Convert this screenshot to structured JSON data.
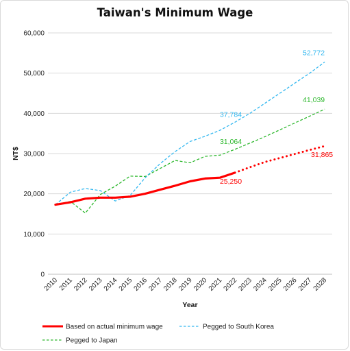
{
  "chart_data": {
    "type": "line",
    "title": "Taiwan's Minimum Wage",
    "xlabel": "Year",
    "ylabel": "NT$",
    "x": [
      "2010",
      "2011",
      "2012",
      "2013",
      "2014",
      "2015",
      "2016",
      "2017",
      "2018",
      "2019",
      "2020",
      "2021",
      "2022",
      "2023",
      "2024",
      "2025",
      "2026",
      "2027",
      "2028"
    ],
    "ylim": [
      0,
      60000
    ],
    "yticks": [
      0,
      10000,
      20000,
      30000,
      40000,
      50000,
      60000
    ],
    "ytick_labels": [
      "0",
      "10,000",
      "20,000",
      "30,000",
      "40,000",
      "50,000",
      "60,000"
    ],
    "grid": "horizontal",
    "legend_position": "bottom",
    "series": [
      {
        "name": "Based on actual minimum wage",
        "color": "#ff0000",
        "style": "solid-thick, dotted projection after 2022",
        "values": [
          17280,
          17880,
          18780,
          19047,
          19047,
          19273,
          20008,
          21009,
          22000,
          23100,
          23800,
          24000,
          25250,
          26600,
          27900,
          28900,
          29900,
          30900,
          31865
        ],
        "labels": [
          {
            "x": "2022",
            "value": 25250,
            "text": "25,250"
          },
          {
            "x": "2028",
            "value": 31865,
            "text": "31,865"
          }
        ]
      },
      {
        "name": "Pegged to South Korea",
        "color": "#33b8f0",
        "style": "dashed",
        "values": [
          17280,
          20400,
          21300,
          20800,
          18200,
          19600,
          24000,
          27500,
          30500,
          33000,
          34300,
          35800,
          37784,
          40000,
          42500,
          45000,
          47500,
          50000,
          52772
        ],
        "labels": [
          {
            "x": "2022",
            "value": 37784,
            "text": "37,784"
          },
          {
            "x": "2028",
            "value": 52772,
            "text": "52,772"
          }
        ]
      },
      {
        "name": "Pegged to Japan",
        "color": "#2eb82e",
        "style": "dashed",
        "values": [
          17280,
          18100,
          15200,
          19800,
          21900,
          24400,
          24300,
          26300,
          28300,
          27700,
          29300,
          29600,
          31064,
          32600,
          34200,
          35900,
          37600,
          39300,
          41039
        ],
        "labels": [
          {
            "x": "2022",
            "value": 31064,
            "text": "31,064"
          },
          {
            "x": "2028",
            "value": 41039,
            "text": "41,039"
          }
        ]
      }
    ]
  }
}
